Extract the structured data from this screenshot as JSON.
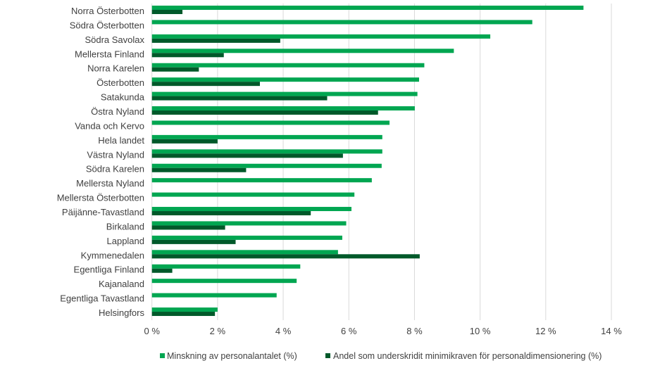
{
  "chart_data": {
    "type": "bar",
    "orientation": "horizontal",
    "categories": [
      "Norra Österbotten",
      "Södra Österbotten",
      "Södra Savolax",
      "Mellersta Finland",
      "Norra Karelen",
      "Österbotten",
      "Satakunda",
      "Östra Nyland",
      "Vanda och Kervo",
      "Hela landet",
      "Västra Nyland",
      "Södra Karelen",
      "Mellersta Nyland",
      "Mellersta Österbotten",
      "Päijänne-Tavastland",
      "Birkaland",
      "Lappland",
      "Kymmenedalen",
      "Egentliga Finland",
      "Kajanaland",
      "Egentliga Tavastland",
      "Helsingfors"
    ],
    "series": [
      {
        "name": "Minskning av personalantalet (%)",
        "color": "#00A651",
        "values": [
          13.15,
          11.59,
          10.31,
          9.2,
          8.3,
          8.14,
          8.09,
          8.01,
          7.24,
          7.02,
          7.02,
          7.0,
          6.7,
          6.17,
          6.08,
          5.92,
          5.8,
          5.67,
          4.52,
          4.41,
          3.8,
          2.0
        ]
      },
      {
        "name": "Andel som underskridit minimikraven för personaldimensionering (%)",
        "color": "#00592A",
        "values": [
          0.93,
          0,
          3.91,
          2.19,
          1.43,
          3.29,
          5.34,
          6.89,
          0,
          2.0,
          5.82,
          2.87,
          0,
          0,
          4.84,
          2.23,
          2.55,
          8.16,
          0.62,
          0,
          0,
          1.92
        ]
      }
    ],
    "xlim": [
      0,
      14
    ],
    "xticks": [
      0,
      2,
      4,
      6,
      8,
      10,
      12,
      14
    ],
    "xtick_labels": [
      "0 %",
      "2 %",
      "4 %",
      "6 %",
      "8 %",
      "10 %",
      "12 %",
      "14 %"
    ],
    "grid": true,
    "legend_position": "bottom"
  }
}
